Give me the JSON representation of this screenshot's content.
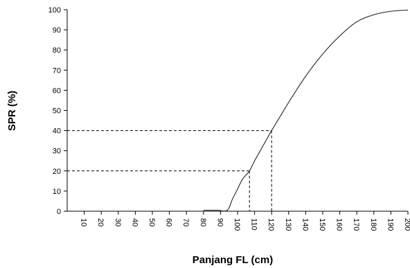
{
  "chart_data": {
    "type": "line",
    "title": "",
    "xlabel": "Panjang FL (cm)",
    "ylabel": "SPR (%)",
    "xlim": [
      0,
      200
    ],
    "ylim": [
      0,
      100
    ],
    "x_ticks": [
      10,
      20,
      30,
      40,
      50,
      60,
      70,
      80,
      90,
      100,
      110,
      120,
      130,
      140,
      150,
      160,
      170,
      180,
      190,
      200
    ],
    "y_ticks": [
      0,
      10,
      20,
      30,
      40,
      50,
      60,
      70,
      80,
      90,
      100
    ],
    "grid": false,
    "legend": "none",
    "series": [
      {
        "x": [
          80,
          88,
          94,
          97,
          100,
          103,
          107,
          110,
          114,
          120,
          125,
          130,
          140,
          150,
          160,
          170,
          180,
          190,
          200
        ],
        "y": [
          0.5,
          0.5,
          0.5,
          6,
          11,
          16,
          20,
          25,
          31,
          40,
          47,
          54,
          67,
          78,
          87,
          94,
          97.5,
          99.2,
          99.8
        ]
      }
    ],
    "reference_lines": [
      {
        "x": 107,
        "y": 20
      },
      {
        "x": 120,
        "y": 40
      }
    ],
    "colors": {
      "line": "#333333",
      "axis": "#000000",
      "reference": "#000000"
    }
  }
}
